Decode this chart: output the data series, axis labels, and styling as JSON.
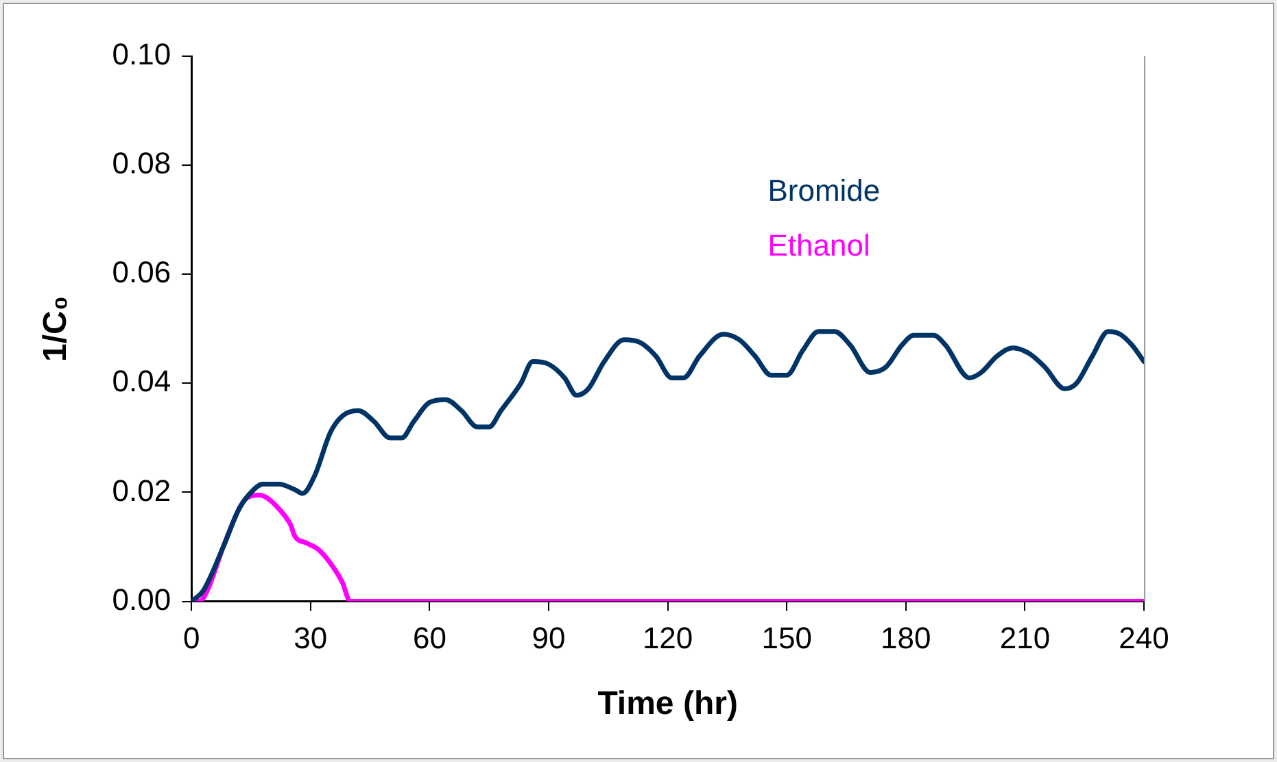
{
  "chart_data": {
    "type": "line",
    "xlabel": "Time (hr)",
    "ylabel": "1/C₀",
    "xlim": [
      0,
      240
    ],
    "xticks": [
      0,
      30,
      60,
      90,
      120,
      150,
      180,
      210,
      240
    ],
    "ylim": [
      0,
      0.1
    ],
    "yticks": [
      {
        "value": 0,
        "label": "0.00"
      },
      {
        "value": 0.02,
        "label": "0.02"
      },
      {
        "value": 0.04,
        "label": "0.04"
      },
      {
        "value": 0.06,
        "label": "0.06"
      },
      {
        "value": 0.08,
        "label": "0.08"
      },
      {
        "value": 0.1,
        "label": "0.10"
      }
    ],
    "grid": false,
    "marker": "none",
    "line_style": "solid",
    "series": [
      {
        "name": "Bromide",
        "color": "#003366",
        "x": [
          0,
          3,
          8,
          12,
          15,
          18,
          22,
          26,
          28,
          31,
          35,
          38,
          42,
          46,
          50,
          53,
          56,
          60,
          64,
          68,
          72,
          75,
          78,
          83,
          86,
          90,
          94,
          97,
          100,
          104,
          109,
          113,
          117,
          121,
          124,
          128,
          134,
          138,
          142,
          146,
          150,
          154,
          158,
          162,
          166,
          171,
          175,
          179,
          182,
          187,
          190,
          196,
          199,
          203,
          207,
          211,
          215,
          220,
          223,
          227,
          231,
          234,
          237,
          240
        ],
        "values": [
          0,
          0.002,
          0.01,
          0.017,
          0.02,
          0.0215,
          0.0215,
          0.0205,
          0.0198,
          0.023,
          0.031,
          0.034,
          0.035,
          0.033,
          0.03,
          0.03,
          0.033,
          0.0365,
          0.037,
          0.035,
          0.032,
          0.032,
          0.035,
          0.04,
          0.044,
          0.0435,
          0.041,
          0.0378,
          0.039,
          0.044,
          0.048,
          0.0475,
          0.045,
          0.041,
          0.041,
          0.045,
          0.049,
          0.048,
          0.045,
          0.0415,
          0.0415,
          0.046,
          0.0495,
          0.0495,
          0.047,
          0.042,
          0.043,
          0.047,
          0.0488,
          0.0488,
          0.047,
          0.041,
          0.042,
          0.045,
          0.0465,
          0.0455,
          0.043,
          0.039,
          0.04,
          0.045,
          0.0495,
          0.049,
          0.047,
          0.044
        ]
      },
      {
        "name": "Ethanol",
        "color": "#ff00ff",
        "x": [
          0,
          2,
          4,
          8,
          12,
          14,
          17,
          19,
          22,
          25,
          26,
          29,
          32,
          35,
          38,
          40,
          240
        ],
        "values": [
          0,
          0,
          0.002,
          0.01,
          0.017,
          0.019,
          0.0195,
          0.019,
          0.017,
          0.014,
          0.012,
          0.0107,
          0.0095,
          0.007,
          0.0035,
          0,
          0
        ]
      }
    ]
  }
}
